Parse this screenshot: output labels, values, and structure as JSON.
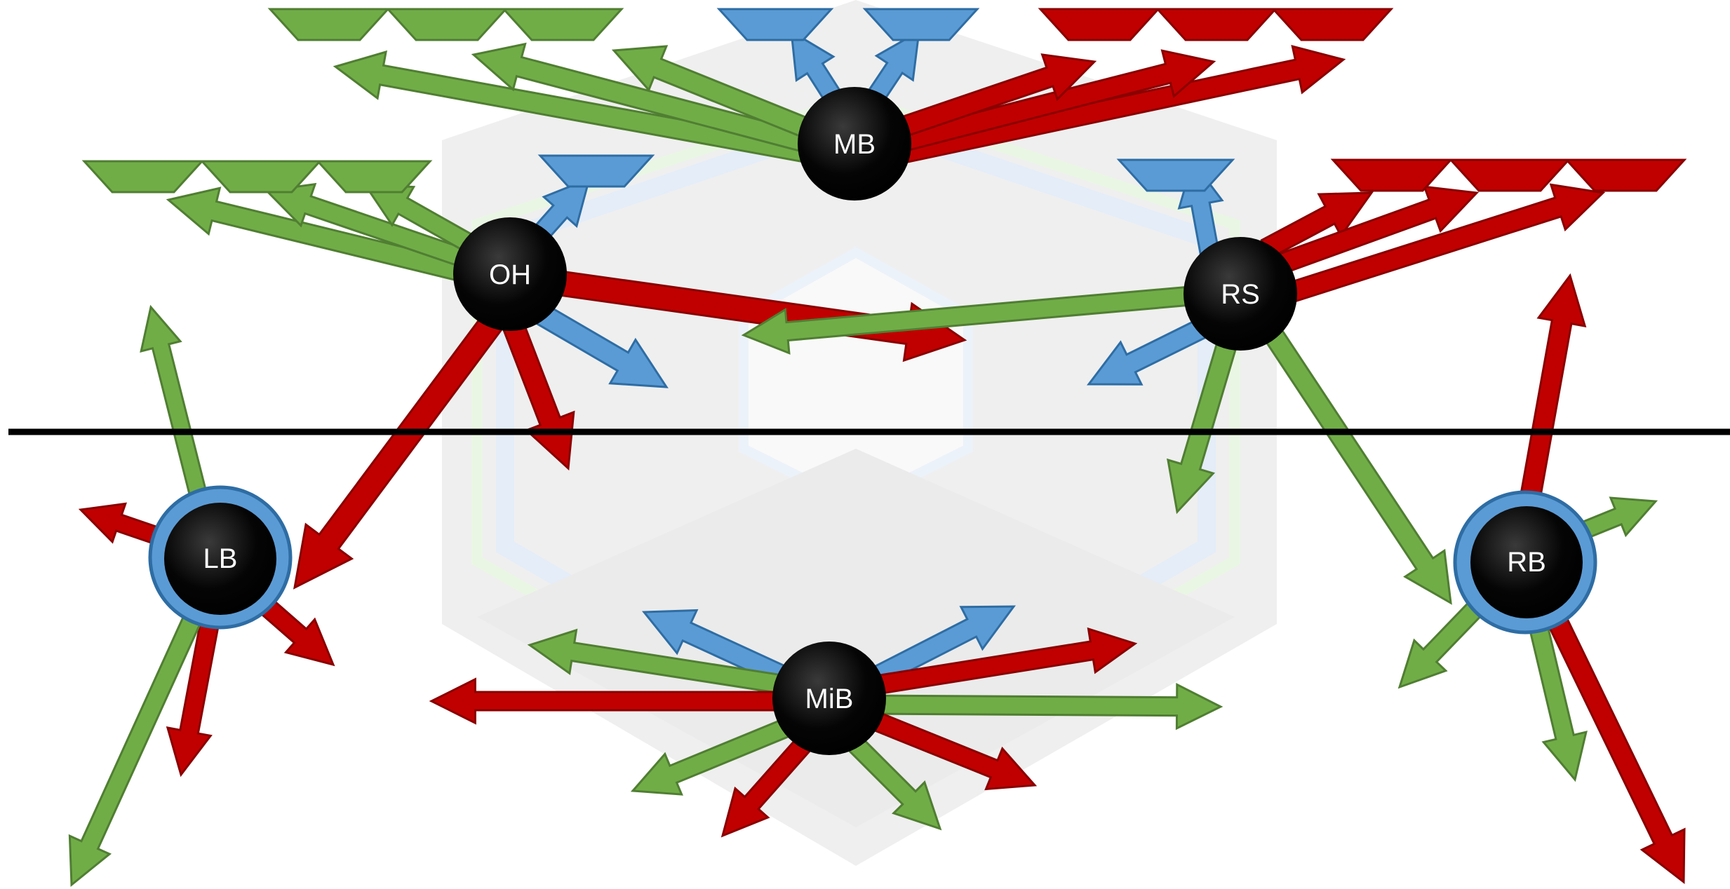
{
  "colors": {
    "green": "#70ad47",
    "green_stroke": "#507e32",
    "red": "#c00000",
    "red_stroke": "#8a0000",
    "blue": "#5b9bd5",
    "blue_stroke": "#2e6da4",
    "node_fill": "#000000",
    "node_text": "#ffffff",
    "line": "#000000",
    "background_hex": "#e6e6e6"
  },
  "nodes": {
    "mb": {
      "label": "MB"
    },
    "oh": {
      "label": "OH"
    },
    "rs": {
      "label": "RS"
    },
    "lb": {
      "label": "LB"
    },
    "rb": {
      "label": "RB"
    },
    "mib": {
      "label": "MiB"
    }
  }
}
